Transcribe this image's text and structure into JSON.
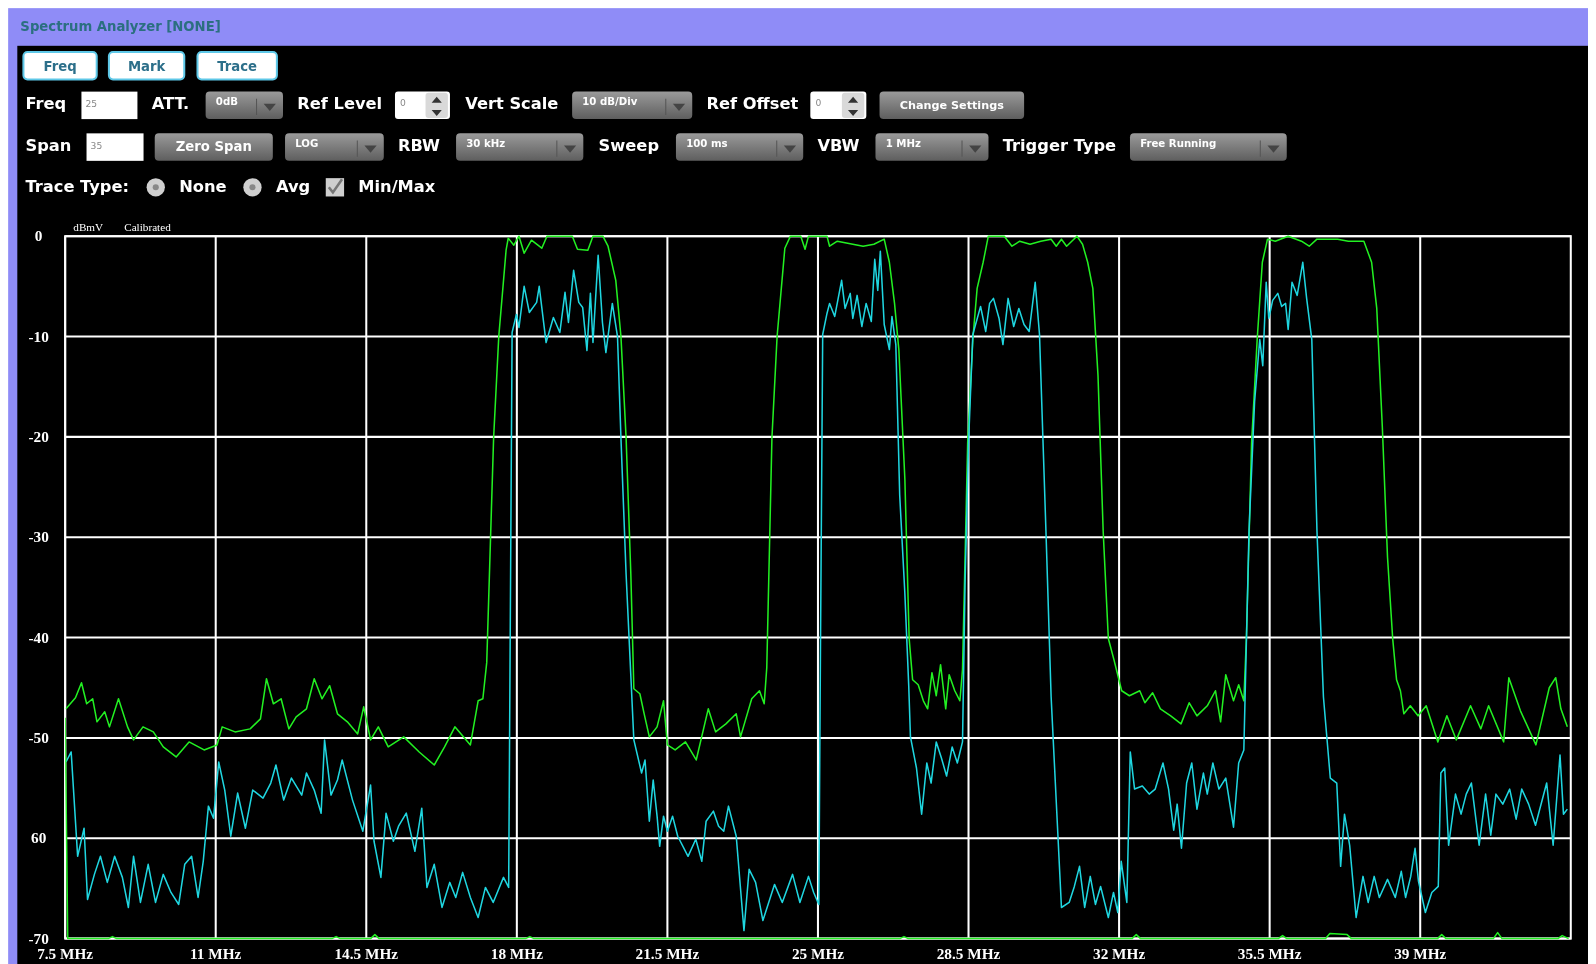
{
  "chart_data": [
    {
      "type": "other",
      "title": "Spectrum Analyzer [NONE]",
      "annotations": [
        "Freq",
        "Mark",
        "Trace",
        "Freq",
        "25",
        "ATT.",
        "0dB",
        "Ref Level",
        "0",
        "Vert Scale",
        "10 dB/Div",
        "Ref Offset",
        "0",
        "Change Settings",
        "Span",
        "35",
        "Zero Span",
        "LOG",
        "RBW",
        "30 kHz",
        "Sweep",
        "100 ms",
        "VBW",
        "1 MHz",
        "Trigger Type",
        "Free Running",
        "Trace Type:",
        "None",
        "Avg",
        "Min/Max"
      ]
    },
    {
      "type": "line",
      "ylabel": "dBmV",
      "annotations": [
        "Calibrated"
      ],
      "grid": true,
      "xlim": [
        7.5,
        42.5
      ],
      "ylim": [
        -70,
        0
      ],
      "xticks": [
        {
          "value": 7.5,
          "label": "7.5 MHz"
        },
        {
          "value": 11,
          "label": "11 MHz"
        },
        {
          "value": 14.5,
          "label": "14.5 MHz"
        },
        {
          "value": 18,
          "label": "18 MHz"
        },
        {
          "value": 21.5,
          "label": "21.5 MHz"
        },
        {
          "value": 25,
          "label": "25 MHz"
        },
        {
          "value": 28.5,
          "label": "28.5 MHz"
        },
        {
          "value": 32,
          "label": "32 MHz"
        },
        {
          "value": 35.5,
          "label": "35.5 MHz"
        },
        {
          "value": 39,
          "label": "39 MHz"
        }
      ],
      "yticks": [
        0,
        -10,
        -20,
        -30,
        -40,
        -50,
        {
          "value": -60,
          "label": "60"
        },
        -70
      ],
      "series": [
        {
          "color": "#22f022",
          "x": [
            7.52,
            7.74,
            7.88,
            8.0,
            8.14,
            8.24,
            8.42,
            8.53,
            8.74,
            8.95,
            9.09,
            9.31,
            9.55,
            9.78,
            10.08,
            10.38,
            10.73,
            11.03,
            11.15,
            11.45,
            11.8,
            12.04,
            12.18,
            12.34,
            12.52,
            12.7,
            12.87,
            13.11,
            13.29,
            13.47,
            13.65,
            13.83,
            14.06,
            14.3,
            14.44,
            14.6,
            14.78,
            15.01,
            15.37,
            15.73,
            16.08,
            16.32,
            16.56,
            16.92,
            17.1,
            17.21,
            17.3,
            17.46,
            17.58,
            17.75,
            17.8,
            17.93,
            18.05,
            18.17,
            18.34,
            18.58,
            18.7,
            19.29,
            19.41,
            19.65,
            19.77,
            20.0,
            20.12,
            20.3,
            20.42,
            20.54,
            20.65,
            20.72,
            20.86,
            20.96,
            21.08,
            21.26,
            21.41,
            21.5,
            21.68,
            21.92,
            22.17,
            22.45,
            22.62,
            22.86,
            23.1,
            23.2,
            23.46,
            23.64,
            23.75,
            23.81,
            23.93,
            24.05,
            24.23,
            24.36,
            24.6,
            24.7,
            24.78,
            25.21,
            25.27,
            25.45,
            25.81,
            26.05,
            26.3,
            26.54,
            26.66,
            26.78,
            26.88,
            27.02,
            27.12,
            27.2,
            27.33,
            27.45,
            27.55,
            27.65,
            27.75,
            27.85,
            27.97,
            28.05,
            28.18,
            28.3,
            28.36,
            28.48,
            28.6,
            28.7,
            28.84,
            28.96,
            29.33,
            29.51,
            29.69,
            29.93,
            30.18,
            30.42,
            30.54,
            30.66,
            30.78,
            31.02,
            31.15,
            31.27,
            31.39,
            31.51,
            31.63,
            31.75,
            31.88,
            32.06,
            32.24,
            32.48,
            32.6,
            32.78,
            32.96,
            33.2,
            33.44,
            33.63,
            33.81,
            34.05,
            34.24,
            34.36,
            34.48,
            34.66,
            34.78,
            34.9,
            34.96,
            35.08,
            35.21,
            35.33,
            35.45,
            35.63,
            35.93,
            36.24,
            36.42,
            36.6,
            37.08,
            37.33,
            37.69,
            37.87,
            37.99,
            38.12,
            38.24,
            38.36,
            38.45,
            38.54,
            38.62,
            38.77,
            38.95,
            39.14,
            39.41,
            39.62,
            39.84,
            40.17,
            40.41,
            40.59,
            40.94,
            41.06,
            41.33,
            41.69,
            42.0,
            42.15,
            42.27,
            42.42
          ],
          "values": [
            -47.1,
            -46,
            -44.5,
            -46.6,
            -46.1,
            -48.4,
            -47.4,
            -48.9,
            -46.1,
            -48.9,
            -50.2,
            -48.9,
            -49.4,
            -50.9,
            -51.9,
            -50.4,
            -51.2,
            -50.7,
            -48.9,
            -49.4,
            -49.1,
            -48.1,
            -44.1,
            -46.6,
            -46.1,
            -49.1,
            -47.9,
            -47.1,
            -44.1,
            -46.1,
            -44.8,
            -47.6,
            -48.4,
            -49.6,
            -46.9,
            -50.2,
            -48.9,
            -50.9,
            -49.9,
            -51.4,
            -52.7,
            -50.9,
            -48.9,
            -50.7,
            -46.3,
            -46.1,
            -42.5,
            -20.1,
            -10,
            -1.4,
            -0.2,
            -0.9,
            0,
            -1.7,
            -0.4,
            -1.2,
            0,
            0,
            -1.3,
            -1.4,
            0,
            0,
            -1,
            -4.4,
            -10,
            -20.1,
            -33.7,
            -45.1,
            -45.6,
            -47.6,
            -49.9,
            -48.9,
            -46.3,
            -50.7,
            -51.2,
            -50.4,
            -52.2,
            -47.1,
            -49.4,
            -48.6,
            -47.6,
            -49.9,
            -46.1,
            -45.3,
            -46.6,
            -43,
            -20.1,
            -10,
            -1.2,
            0,
            0,
            -1.3,
            0,
            0,
            -1,
            -0.5,
            -0.8,
            -1,
            -0.8,
            -0.3,
            -2.6,
            -6.7,
            -11.3,
            -24.2,
            -40.1,
            -44.2,
            -44.7,
            -46.3,
            -47.1,
            -43.5,
            -45.8,
            -42.7,
            -47.1,
            -43.7,
            -45.3,
            -46.3,
            -43.2,
            -20.6,
            -10.3,
            -5.2,
            -2.6,
            0,
            0,
            -1,
            -0.5,
            -0.8,
            -0.5,
            -0.3,
            -1,
            -0.3,
            -1,
            0,
            -0.8,
            -2.6,
            -5.2,
            -13.9,
            -29.4,
            -40.1,
            -42.2,
            -45.3,
            -45.8,
            -45.3,
            -46.5,
            -45.5,
            -47.1,
            -47.8,
            -48.6,
            -46.5,
            -47.8,
            -46.8,
            -45.3,
            -48.4,
            -43.7,
            -46.3,
            -44.7,
            -46.3,
            -40,
            -20.6,
            -10.3,
            -2.6,
            -0.3,
            -0.5,
            0,
            -0.5,
            -1,
            -0.3,
            -0.3,
            -0.5,
            -0.5,
            -2.6,
            -7.2,
            -19.1,
            -32,
            -40.1,
            -44.2,
            -45.3,
            -47.6,
            -46.8,
            -47.8,
            -46.8,
            -50.4,
            -47.8,
            -50.2,
            -46.8,
            -49.1,
            -46.8,
            -50.4,
            -44,
            -47.3,
            -50.7,
            -45,
            -44,
            -47.1,
            -48.9
          ]
        },
        {
          "color": "#1fd6e0",
          "x": [
            7.52,
            7.64,
            7.79,
            7.94,
            8.02,
            8.18,
            8.32,
            8.48,
            8.65,
            8.83,
            8.97,
            9.09,
            9.25,
            9.43,
            9.6,
            9.78,
            9.96,
            10.14,
            10.28,
            10.44,
            10.59,
            10.71,
            10.83,
            10.95,
            11.07,
            11.21,
            11.35,
            11.51,
            11.69,
            11.86,
            12.1,
            12.28,
            12.4,
            12.58,
            12.76,
            13.0,
            13.11,
            13.29,
            13.45,
            13.53,
            13.68,
            13.83,
            13.94,
            14.18,
            14.42,
            14.6,
            14.68,
            14.84,
            14.96,
            15.13,
            15.25,
            15.43,
            15.63,
            15.79,
            15.91,
            16.08,
            16.26,
            16.44,
            16.58,
            16.74,
            16.92,
            17.1,
            17.27,
            17.45,
            17.69,
            17.81,
            17.86,
            17.89,
            17.99,
            18.05,
            18.17,
            18.29,
            18.46,
            18.52,
            18.68,
            18.85,
            19.0,
            19.12,
            19.2,
            19.32,
            19.44,
            19.53,
            19.63,
            19.71,
            19.77,
            19.89,
            19.99,
            20.07,
            20.22,
            20.34,
            20.42,
            20.54,
            20.65,
            20.72,
            20.9,
            20.98,
            21.08,
            21.17,
            21.26,
            21.32,
            21.41,
            21.5,
            21.62,
            21.74,
            21.98,
            22.16,
            22.3,
            22.4,
            22.57,
            22.69,
            22.81,
            22.92,
            23.1,
            23.28,
            23.4,
            23.55,
            23.72,
            23.99,
            24.17,
            24.41,
            24.58,
            24.78,
            24.9,
            25.02,
            25.06,
            25.11,
            25.21,
            25.27,
            25.39,
            25.55,
            25.63,
            25.75,
            25.81,
            25.91,
            26.02,
            26.12,
            26.24,
            26.32,
            26.39,
            26.45,
            26.54,
            26.66,
            26.72,
            26.81,
            26.9,
            27.02,
            27.11,
            27.15,
            27.29,
            27.41,
            27.53,
            27.63,
            27.75,
            27.87,
            27.99,
            28.12,
            28.24,
            28.36,
            28.42,
            28.5,
            28.6,
            28.78,
            28.9,
            28.99,
            29.08,
            29.21,
            29.3,
            29.42,
            29.55,
            29.67,
            29.79,
            29.91,
            30.05,
            30.15,
            30.3,
            30.42,
            30.66,
            30.84,
            30.96,
            31.08,
            31.2,
            31.33,
            31.45,
            31.57,
            31.75,
            31.87,
            31.97,
            32.05,
            32.18,
            32.26,
            32.36,
            32.54,
            32.7,
            32.84,
            33.02,
            33.15,
            33.27,
            33.35,
            33.45,
            33.57,
            33.69,
            33.81,
            33.96,
            34.05,
            34.18,
            34.32,
            34.48,
            34.66,
            34.78,
            34.9,
            35.02,
            35.15,
            35.27,
            35.34,
            35.42,
            35.48,
            35.57,
            35.69,
            35.78,
            35.87,
            35.93,
            36.02,
            36.14,
            36.27,
            36.36,
            36.48,
            36.6,
            36.75,
            36.91,
            37.06,
            37.15,
            37.24,
            37.36,
            37.51,
            37.67,
            37.79,
            37.93,
            38.05,
            38.24,
            38.42,
            38.56,
            38.66,
            38.78,
            38.88,
            38.96,
            39.12,
            39.27,
            39.42,
            39.48,
            39.57,
            39.66,
            39.82,
            39.95,
            40.07,
            40.19,
            40.37,
            40.52,
            40.64,
            40.76,
            40.92,
            41.08,
            41.23,
            41.36,
            41.52,
            41.68,
            41.94,
            42.09,
            42.25,
            42.33,
            42.42
          ],
          "values": [
            -52.4,
            -51.4,
            -61.8,
            -59,
            -66.1,
            -63.6,
            -61.8,
            -64.4,
            -61.8,
            -63.9,
            -66.9,
            -61.8,
            -66.4,
            -62.6,
            -66.4,
            -63.6,
            -65.4,
            -66.6,
            -62.6,
            -61.8,
            -65.9,
            -62.3,
            -56.8,
            -58,
            -52.4,
            -55.2,
            -59.8,
            -55.5,
            -59,
            -55.2,
            -56,
            -54.5,
            -52.7,
            -56.2,
            -54,
            -55.7,
            -53.5,
            -55.2,
            -57.5,
            -50.2,
            -55.7,
            -54.2,
            -52.2,
            -56.2,
            -59.3,
            -54.7,
            -60.3,
            -63.9,
            -57.5,
            -60.3,
            -58.8,
            -57.5,
            -61.3,
            -57,
            -64.9,
            -62.6,
            -66.9,
            -64.4,
            -65.9,
            -63.4,
            -65.9,
            -67.9,
            -64.9,
            -66.4,
            -63.9,
            -64.9,
            -30,
            -9.6,
            -7.8,
            -9.1,
            -5,
            -7.6,
            -6.6,
            -5,
            -10.6,
            -8.1,
            -9.6,
            -5.6,
            -8.6,
            -3.4,
            -6.6,
            -7.1,
            -11.4,
            -5.7,
            -10.6,
            -1.9,
            -8.6,
            -11.6,
            -6.7,
            -10,
            -20.1,
            -33.7,
            -43.8,
            -50.2,
            -53.5,
            -52.2,
            -58.3,
            -54.2,
            -57.8,
            -60.8,
            -57.8,
            -59.3,
            -57.8,
            -59.8,
            -61.8,
            -60.1,
            -62.3,
            -58.3,
            -57.3,
            -58.8,
            -59.3,
            -56.8,
            -59.8,
            -69.2,
            -63.1,
            -64.4,
            -68.2,
            -64.6,
            -66.4,
            -63.6,
            -66.4,
            -63.8,
            -65.4,
            -66.6,
            -40,
            -9.8,
            -7.7,
            -6.7,
            -8,
            -4.4,
            -7.2,
            -5.7,
            -8.2,
            -5.9,
            -9,
            -6.7,
            -8.5,
            -2.3,
            -5.4,
            -1.5,
            -8.8,
            -11.3,
            -8,
            -10.8,
            -25.8,
            -35.6,
            -44.8,
            -49.9,
            -53,
            -57.6,
            -52.5,
            -54.5,
            -50.4,
            -52,
            -53.8,
            -50.9,
            -52.5,
            -50.4,
            -34.5,
            -20.6,
            -9.8,
            -7,
            -9.5,
            -6.7,
            -6.2,
            -8.2,
            -10.8,
            -6.2,
            -9,
            -7.2,
            -8.8,
            -9.5,
            -4.6,
            -9.8,
            -29.4,
            -45.9,
            -66.9,
            -66.4,
            -64.8,
            -62.8,
            -66.9,
            -63.8,
            -66.6,
            -64.8,
            -67.9,
            -65.4,
            -67.4,
            -62.3,
            -66.4,
            -51.4,
            -55.1,
            -54.8,
            -55.6,
            -55.1,
            -52.5,
            -55.1,
            -59.2,
            -56.6,
            -61,
            -54.5,
            -52.5,
            -57.1,
            -53.5,
            -55.6,
            -52.5,
            -55.1,
            -54,
            -58.9,
            -52.5,
            -51.2,
            -29.4,
            -16.5,
            -10.3,
            -12.9,
            -4.6,
            -8.2,
            -6.4,
            -5.7,
            -7,
            -6.7,
            -9.3,
            -4.6,
            -5.9,
            -2.6,
            -6.2,
            -10.3,
            -29.4,
            -45.9,
            -54,
            -54.5,
            -62.8,
            -57.6,
            -60.7,
            -67.9,
            -63.8,
            -66.4,
            -63.8,
            -65.9,
            -64.1,
            -65.9,
            -63.3,
            -65.9,
            -63.8,
            -61,
            -64.3,
            -67.4,
            -65.4,
            -64.8,
            -53.5,
            -53,
            -60.7,
            -55.6,
            -57.6,
            -55.6,
            -54.5,
            -60.7,
            -55.6,
            -59.7,
            -55.6,
            -56.6,
            -55.1,
            -58.1,
            -55.1,
            -56.6,
            -58.7,
            -54.5,
            -60.7,
            -51.7,
            -57.6,
            -57.1
          ]
        },
        {
          "color": "#22f022",
          "x": [
            7.5,
            7.56,
            8.5,
            8.6,
            8.7,
            13.7,
            13.8,
            13.9,
            14.6,
            14.7,
            14.8,
            18.2,
            18.3,
            18.4,
            26.9,
            27.0,
            27.1,
            32.3,
            32.4,
            32.5,
            35.7,
            35.8,
            35.9,
            36.8,
            36.9,
            37.3,
            37.4,
            39.4,
            39.5,
            39.6,
            40.7,
            40.8,
            40.9,
            42.2,
            42.3,
            42.45
          ],
          "values": [
            -48,
            -70,
            -70,
            -69.8,
            -70,
            -70,
            -69.8,
            -70,
            -70,
            -69.6,
            -70,
            -70,
            -69.8,
            -70,
            -70,
            -69.8,
            -70,
            -70,
            -69.6,
            -70,
            -70,
            -69.7,
            -70,
            -70,
            -69.5,
            -69.6,
            -70,
            -70,
            -69.6,
            -70,
            -70,
            -69.4,
            -70,
            -70,
            -69.7,
            -70
          ]
        }
      ]
    }
  ]
}
